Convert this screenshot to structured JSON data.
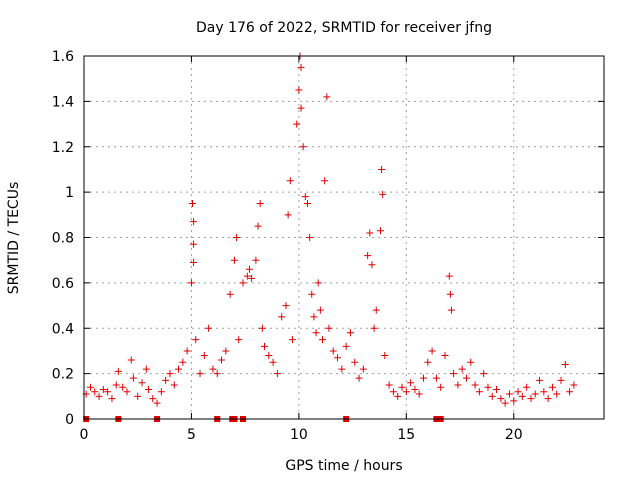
{
  "chart_data": {
    "type": "scatter",
    "title": "Day 176 of 2022, SRMTID for receiver jfng",
    "xlabel": "GPS time / hours",
    "ylabel": "SRMTID / TECUs",
    "xlim": [
      0,
      24.2
    ],
    "ylim": [
      0,
      1.6
    ],
    "xticks": [
      0,
      5,
      10,
      15,
      20
    ],
    "xtick_labels": [
      "0",
      "5",
      "10",
      "15",
      "20"
    ],
    "yticks": [
      0,
      0.2,
      0.4,
      0.6,
      0.8,
      1.0,
      1.2,
      1.4,
      1.6
    ],
    "ytick_labels": [
      "0",
      "0.2",
      "0.4",
      "0.6",
      "0.8",
      "1",
      "1.2",
      "1.4",
      "1.6"
    ],
    "grid": true,
    "marker": "+",
    "marker_color": "#dd0000",
    "series": [
      {
        "name": "SRMTID",
        "points": [
          [
            0.1,
            0.11
          ],
          [
            0.3,
            0.14
          ],
          [
            0.5,
            0.12
          ],
          [
            0.7,
            0.1
          ],
          [
            0.9,
            0.13
          ],
          [
            1.1,
            0.12
          ],
          [
            1.3,
            0.09
          ],
          [
            1.5,
            0.15
          ],
          [
            1.6,
            0.21
          ],
          [
            1.8,
            0.14
          ],
          [
            2.0,
            0.12
          ],
          [
            2.2,
            0.26
          ],
          [
            2.3,
            0.18
          ],
          [
            2.5,
            0.1
          ],
          [
            2.7,
            0.16
          ],
          [
            2.9,
            0.22
          ],
          [
            3.0,
            0.13
          ],
          [
            3.2,
            0.09
          ],
          [
            3.4,
            0.07
          ],
          [
            3.6,
            0.12
          ],
          [
            3.8,
            0.17
          ],
          [
            4.0,
            0.2
          ],
          [
            4.2,
            0.15
          ],
          [
            4.4,
            0.22
          ],
          [
            4.6,
            0.25
          ],
          [
            4.8,
            0.3
          ],
          [
            5.0,
            0.6
          ],
          [
            5.05,
            0.95
          ],
          [
            5.1,
            0.87
          ],
          [
            5.1,
            0.77
          ],
          [
            5.1,
            0.69
          ],
          [
            5.2,
            0.35
          ],
          [
            5.4,
            0.2
          ],
          [
            5.6,
            0.28
          ],
          [
            5.8,
            0.4
          ],
          [
            6.0,
            0.22
          ],
          [
            6.2,
            0.2
          ],
          [
            6.4,
            0.26
          ],
          [
            6.6,
            0.3
          ],
          [
            6.8,
            0.55
          ],
          [
            7.0,
            0.7
          ],
          [
            7.1,
            0.8
          ],
          [
            7.2,
            0.35
          ],
          [
            7.4,
            0.6
          ],
          [
            7.6,
            0.63
          ],
          [
            7.7,
            0.66
          ],
          [
            7.8,
            0.62
          ],
          [
            8.0,
            0.7
          ],
          [
            8.1,
            0.85
          ],
          [
            8.2,
            0.95
          ],
          [
            8.3,
            0.4
          ],
          [
            8.4,
            0.32
          ],
          [
            8.6,
            0.28
          ],
          [
            8.8,
            0.25
          ],
          [
            9.0,
            0.2
          ],
          [
            9.2,
            0.45
          ],
          [
            9.4,
            0.5
          ],
          [
            9.5,
            0.9
          ],
          [
            9.6,
            1.05
          ],
          [
            9.7,
            0.35
          ],
          [
            9.9,
            1.3
          ],
          [
            10.0,
            1.45
          ],
          [
            10.05,
            1.6
          ],
          [
            10.1,
            1.55
          ],
          [
            10.1,
            1.37
          ],
          [
            10.2,
            1.2
          ],
          [
            10.3,
            0.98
          ],
          [
            10.4,
            0.95
          ],
          [
            10.5,
            0.8
          ],
          [
            10.6,
            0.55
          ],
          [
            10.7,
            0.45
          ],
          [
            10.8,
            0.38
          ],
          [
            10.9,
            0.6
          ],
          [
            11.0,
            0.48
          ],
          [
            11.1,
            0.35
          ],
          [
            11.2,
            1.05
          ],
          [
            11.3,
            1.42
          ],
          [
            11.4,
            0.4
          ],
          [
            11.6,
            0.3
          ],
          [
            11.8,
            0.27
          ],
          [
            12.0,
            0.22
          ],
          [
            12.2,
            0.32
          ],
          [
            12.4,
            0.38
          ],
          [
            12.6,
            0.25
          ],
          [
            12.8,
            0.18
          ],
          [
            13.0,
            0.22
          ],
          [
            13.2,
            0.72
          ],
          [
            13.3,
            0.82
          ],
          [
            13.4,
            0.68
          ],
          [
            13.5,
            0.4
          ],
          [
            13.6,
            0.48
          ],
          [
            13.8,
            0.83
          ],
          [
            13.85,
            1.1
          ],
          [
            13.9,
            0.99
          ],
          [
            14.0,
            0.28
          ],
          [
            14.2,
            0.15
          ],
          [
            14.4,
            0.12
          ],
          [
            14.6,
            0.1
          ],
          [
            14.8,
            0.14
          ],
          [
            15.0,
            0.12
          ],
          [
            15.2,
            0.16
          ],
          [
            15.4,
            0.13
          ],
          [
            15.6,
            0.11
          ],
          [
            15.8,
            0.18
          ],
          [
            16.0,
            0.25
          ],
          [
            16.2,
            0.3
          ],
          [
            16.4,
            0.18
          ],
          [
            16.6,
            0.14
          ],
          [
            16.8,
            0.28
          ],
          [
            17.0,
            0.63
          ],
          [
            17.05,
            0.55
          ],
          [
            17.1,
            0.48
          ],
          [
            17.2,
            0.2
          ],
          [
            17.4,
            0.15
          ],
          [
            17.6,
            0.22
          ],
          [
            17.8,
            0.18
          ],
          [
            18.0,
            0.25
          ],
          [
            18.2,
            0.15
          ],
          [
            18.4,
            0.12
          ],
          [
            18.6,
            0.2
          ],
          [
            18.8,
            0.14
          ],
          [
            19.0,
            0.1
          ],
          [
            19.2,
            0.13
          ],
          [
            19.4,
            0.09
          ],
          [
            19.6,
            0.07
          ],
          [
            19.8,
            0.11
          ],
          [
            20.0,
            0.08
          ],
          [
            20.2,
            0.12
          ],
          [
            20.4,
            0.1
          ],
          [
            20.6,
            0.14
          ],
          [
            20.8,
            0.09
          ],
          [
            21.0,
            0.11
          ],
          [
            21.2,
            0.17
          ],
          [
            21.4,
            0.12
          ],
          [
            21.6,
            0.09
          ],
          [
            21.8,
            0.14
          ],
          [
            22.0,
            0.11
          ],
          [
            22.2,
            0.17
          ],
          [
            22.4,
            0.24
          ],
          [
            22.6,
            0.12
          ],
          [
            22.8,
            0.15
          ]
        ]
      }
    ],
    "zero_markers": [
      0.1,
      1.6,
      3.4,
      6.2,
      6.9,
      7.0,
      7.4,
      12.2,
      16.4,
      16.6
    ]
  }
}
